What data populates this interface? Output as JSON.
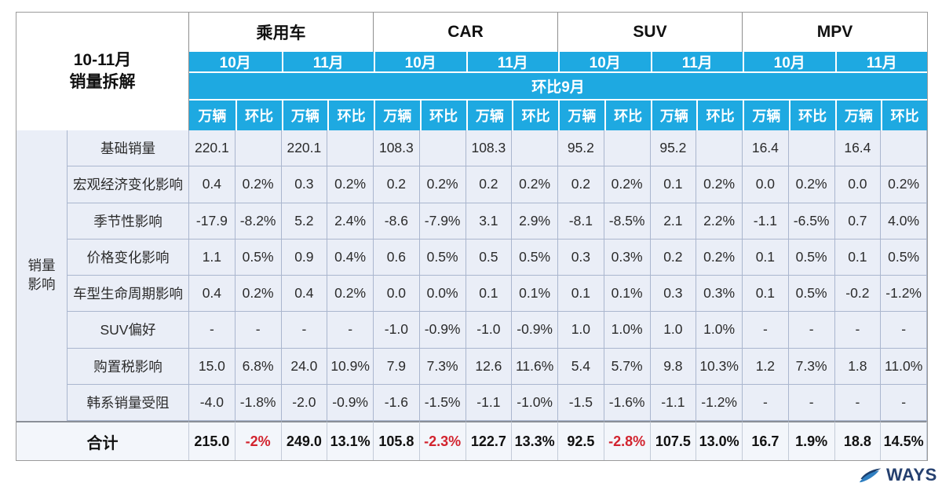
{
  "chart_data": {
    "type": "table",
    "title_line1": "10-11月",
    "title_line2": "销量拆解",
    "groups": [
      "乘用车",
      "CAR",
      "SUV",
      "MPV"
    ],
    "months": [
      "10月",
      "11月"
    ],
    "compare_label": "环比9月",
    "subcols": [
      "万辆",
      "环比"
    ],
    "row_group_label": [
      "销量",
      "影响"
    ],
    "rows": [
      {
        "label": "基础销量",
        "values": [
          "220.1",
          "",
          "220.1",
          "",
          "108.3",
          "",
          "108.3",
          "",
          "95.2",
          "",
          "95.2",
          "",
          "16.4",
          "",
          "16.4",
          ""
        ]
      },
      {
        "label": "宏观经济变化影响",
        "values": [
          "0.4",
          "0.2%",
          "0.3",
          "0.2%",
          "0.2",
          "0.2%",
          "0.2",
          "0.2%",
          "0.2",
          "0.2%",
          "0.1",
          "0.2%",
          "0.0",
          "0.2%",
          "0.0",
          "0.2%"
        ]
      },
      {
        "label": "季节性影响",
        "values": [
          "-17.9",
          "-8.2%",
          "5.2",
          "2.4%",
          "-8.6",
          "-7.9%",
          "3.1",
          "2.9%",
          "-8.1",
          "-8.5%",
          "2.1",
          "2.2%",
          "-1.1",
          "-6.5%",
          "0.7",
          "4.0%"
        ]
      },
      {
        "label": "价格变化影响",
        "values": [
          "1.1",
          "0.5%",
          "0.9",
          "0.4%",
          "0.6",
          "0.5%",
          "0.5",
          "0.5%",
          "0.3",
          "0.3%",
          "0.2",
          "0.2%",
          "0.1",
          "0.5%",
          "0.1",
          "0.5%"
        ]
      },
      {
        "label": "车型生命周期影响",
        "values": [
          "0.4",
          "0.2%",
          "0.4",
          "0.2%",
          "0.0",
          "0.0%",
          "0.1",
          "0.1%",
          "0.1",
          "0.1%",
          "0.3",
          "0.3%",
          "0.1",
          "0.5%",
          "-0.2",
          "-1.2%"
        ]
      },
      {
        "label": "SUV偏好",
        "values": [
          "-",
          "-",
          "-",
          "-",
          "-1.0",
          "-0.9%",
          "-1.0",
          "-0.9%",
          "1.0",
          "1.0%",
          "1.0",
          "1.0%",
          "-",
          "-",
          "-",
          "-"
        ]
      },
      {
        "label": "购置税影响",
        "values": [
          "15.0",
          "6.8%",
          "24.0",
          "10.9%",
          "7.9",
          "7.3%",
          "12.6",
          "11.6%",
          "5.4",
          "5.7%",
          "9.8",
          "10.3%",
          "1.2",
          "7.3%",
          "1.8",
          "11.0%"
        ]
      },
      {
        "label": "韩系销量受阻",
        "values": [
          "-4.0",
          "-1.8%",
          "-2.0",
          "-0.9%",
          "-1.6",
          "-1.5%",
          "-1.1",
          "-1.0%",
          "-1.5",
          "-1.6%",
          "-1.1",
          "-1.2%",
          "-",
          "-",
          "-",
          "-"
        ]
      }
    ],
    "total": {
      "label": "合计",
      "values": [
        "215.0",
        "-2%",
        "249.0",
        "13.1%",
        "105.8",
        "-2.3%",
        "122.7",
        "13.3%",
        "92.5",
        "-2.8%",
        "107.5",
        "13.0%",
        "16.7",
        "1.9%",
        "18.8",
        "14.5%"
      ],
      "red_indices": [
        1,
        5,
        9
      ]
    }
  },
  "logo": {
    "brand": "WAYS"
  },
  "colors": {
    "header_blue": "#1ea9e1",
    "negative_red": "#d2232e",
    "grid_line": "#aab6ce",
    "body_bg": "#eaeef7"
  }
}
